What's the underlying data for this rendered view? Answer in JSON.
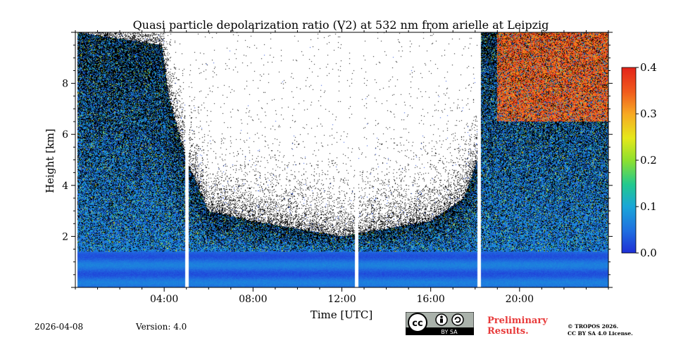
{
  "chart_data": {
    "type": "heatmap",
    "title": "Quasi particle depolarization ratio (V2) at 532 nm from arielle at Leipzig",
    "xlabel": "Time [UTC]",
    "ylabel": "Height [km]",
    "xlim_hours": [
      0,
      24
    ],
    "ylim_km": [
      0,
      10
    ],
    "x_tick_hours": [
      4,
      8,
      12,
      16,
      20
    ],
    "x_tick_labels": [
      "04:00",
      "08:00",
      "12:00",
      "16:00",
      "20:00"
    ],
    "y_ticks": [
      2,
      4,
      6,
      8
    ],
    "y_tick_labels": [
      "2",
      "4",
      "6",
      "8"
    ],
    "colorbar": {
      "range": [
        0.0,
        0.4
      ],
      "ticks": [
        0.0,
        0.1,
        0.2,
        0.3,
        0.4
      ],
      "tick_labels": [
        "0.0",
        "0.1",
        "0.2",
        "0.3",
        "0.4"
      ]
    },
    "data_gaps_hours": [
      [
        0.0,
        0.1
      ],
      [
        4.95,
        5.1
      ],
      [
        12.6,
        12.75
      ],
      [
        18.1,
        18.25
      ]
    ],
    "boundary_layer_top_km": 1.4,
    "noise_limit_km": [
      {
        "t": 0.1,
        "h": 10.0
      },
      {
        "t": 3.9,
        "h": 9.5
      },
      {
        "t": 4.2,
        "h": 7.5
      },
      {
        "t": 5.0,
        "h": 5.0
      },
      {
        "t": 6.0,
        "h": 3.0
      },
      {
        "t": 8.0,
        "h": 2.6
      },
      {
        "t": 10.0,
        "h": 2.3
      },
      {
        "t": 12.0,
        "h": 2.0
      },
      {
        "t": 14.0,
        "h": 2.3
      },
      {
        "t": 16.0,
        "h": 2.6
      },
      {
        "t": 17.5,
        "h": 3.5
      },
      {
        "t": 18.1,
        "h": 5.0
      },
      {
        "t": 18.25,
        "h": 10.0
      },
      {
        "t": 24.0,
        "h": 10.0
      }
    ],
    "high_depol_region": {
      "t_range": [
        19.0,
        24.0
      ],
      "h_range_km": [
        6.5,
        10.0
      ],
      "value": 0.35
    }
  },
  "footer": {
    "date": "2026-04-08",
    "version": "Version: 4.0",
    "license_badge": "BY SA",
    "preliminary_line1": "Preliminary",
    "preliminary_line2": "Results.",
    "copyright_line1": "© TROPOS 2026.",
    "copyright_line2": "CC BY SA 4.0 License."
  }
}
